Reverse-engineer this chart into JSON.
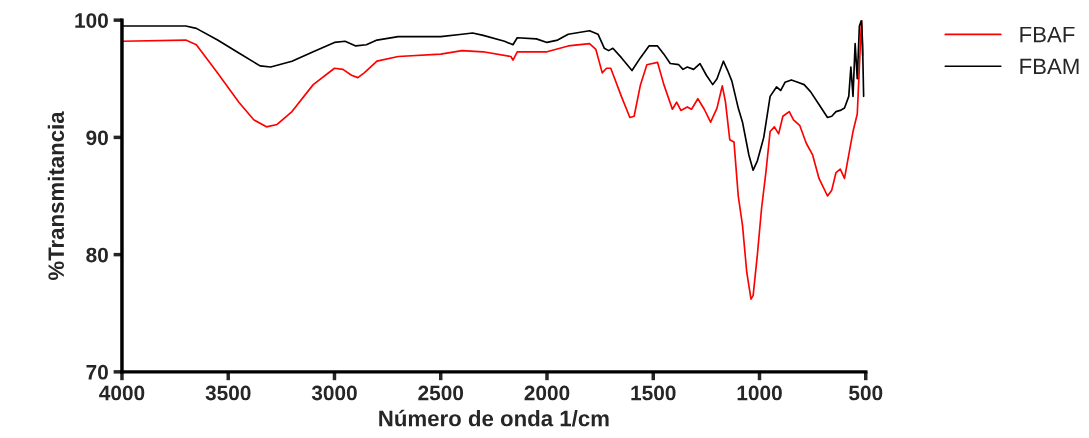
{
  "chart_data": {
    "type": "line",
    "xlabel": "Número de onda 1/cm",
    "ylabel": "%Transmitancia",
    "xlim": [
      4000,
      500
    ],
    "xticks": [
      4000,
      3500,
      3000,
      2500,
      2000,
      1500,
      1000,
      500
    ],
    "ylim": [
      70,
      100
    ],
    "yticks": [
      70,
      80,
      90,
      100
    ],
    "grid": false,
    "legend": "top right",
    "marker": "none",
    "line_style": "solid",
    "series": [
      {
        "name": "FBAF",
        "color": "#ff0000",
        "x": [
          4000,
          3700,
          3650,
          3550,
          3450,
          3380,
          3320,
          3270,
          3200,
          3100,
          3000,
          2960,
          2920,
          2890,
          2860,
          2800,
          2700,
          2500,
          2400,
          2300,
          2170,
          2160,
          2140,
          2000,
          1900,
          1800,
          1770,
          1740,
          1720,
          1700,
          1650,
          1610,
          1590,
          1560,
          1530,
          1480,
          1450,
          1410,
          1390,
          1370,
          1340,
          1320,
          1290,
          1260,
          1230,
          1200,
          1175,
          1160,
          1140,
          1120,
          1100,
          1080,
          1060,
          1040,
          1030,
          1010,
          990,
          970,
          950,
          930,
          910,
          890,
          860,
          840,
          810,
          780,
          750,
          720,
          680,
          660,
          640,
          620,
          600,
          580,
          560,
          540,
          530,
          520,
          515
        ],
        "values": [
          98.2,
          98.3,
          97.9,
          95.5,
          93.0,
          91.5,
          90.9,
          91.1,
          92.2,
          94.5,
          95.9,
          95.8,
          95.3,
          95.1,
          95.5,
          96.5,
          96.9,
          97.1,
          97.4,
          97.3,
          96.9,
          96.6,
          97.3,
          97.3,
          97.8,
          98.0,
          97.5,
          95.5,
          95.9,
          95.9,
          93.5,
          91.7,
          91.8,
          94.5,
          96.2,
          96.4,
          94.5,
          92.4,
          93.0,
          92.3,
          92.6,
          92.4,
          93.3,
          92.4,
          91.3,
          92.5,
          94.4,
          93.0,
          89.8,
          89.6,
          85.0,
          82.5,
          78.5,
          76.2,
          76.5,
          80.0,
          84.0,
          87.0,
          90.5,
          90.9,
          90.3,
          91.8,
          92.2,
          91.5,
          91.0,
          89.5,
          88.5,
          86.5,
          85.0,
          85.5,
          87.0,
          87.3,
          86.5,
          88.5,
          90.5,
          92.0,
          96.0,
          100.0,
          97.0
        ]
      },
      {
        "name": "FBAM",
        "color": "#000000",
        "x": [
          4000,
          3700,
          3650,
          3550,
          3450,
          3350,
          3300,
          3200,
          3100,
          3000,
          2950,
          2900,
          2850,
          2800,
          2700,
          2500,
          2400,
          2350,
          2300,
          2200,
          2160,
          2140,
          2050,
          2000,
          1950,
          1900,
          1800,
          1760,
          1730,
          1710,
          1690,
          1650,
          1600,
          1560,
          1520,
          1480,
          1450,
          1420,
          1380,
          1360,
          1340,
          1310,
          1280,
          1250,
          1220,
          1200,
          1170,
          1150,
          1130,
          1100,
          1080,
          1050,
          1030,
          1010,
          980,
          950,
          920,
          900,
          880,
          850,
          820,
          790,
          760,
          720,
          680,
          660,
          640,
          620,
          600,
          580,
          570,
          560,
          550,
          540,
          530,
          520,
          515,
          510
        ],
        "values": [
          99.5,
          99.5,
          99.3,
          98.3,
          97.2,
          96.1,
          96.0,
          96.5,
          97.3,
          98.1,
          98.2,
          97.8,
          97.9,
          98.3,
          98.6,
          98.6,
          98.8,
          98.9,
          98.7,
          98.2,
          97.9,
          98.5,
          98.4,
          98.1,
          98.3,
          98.8,
          99.1,
          98.8,
          97.6,
          97.4,
          97.6,
          96.8,
          95.7,
          96.8,
          97.8,
          97.8,
          97.1,
          96.3,
          96.2,
          95.8,
          96.0,
          95.8,
          96.3,
          95.3,
          94.5,
          95.0,
          96.5,
          95.7,
          94.8,
          92.5,
          91.3,
          88.5,
          87.2,
          88.0,
          90.0,
          93.5,
          94.3,
          94.0,
          94.7,
          94.9,
          94.7,
          94.5,
          93.9,
          92.8,
          91.7,
          91.8,
          92.2,
          92.3,
          92.5,
          93.5,
          96.0,
          93.5,
          98.0,
          95.0,
          99.5,
          100.0,
          98.0,
          93.5
        ]
      }
    ]
  }
}
